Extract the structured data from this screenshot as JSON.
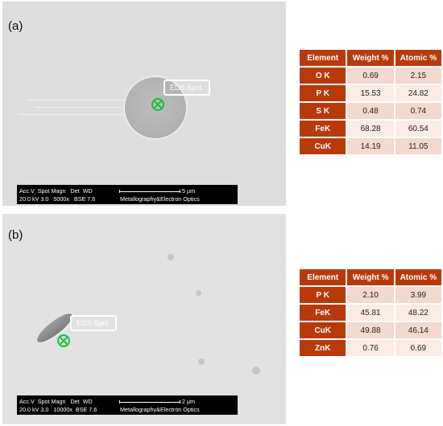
{
  "panel_a": {
    "label": "(a)",
    "spot_label": "EDS Spot",
    "databar": {
      "row1": "Acc.V  Spot Magn   Det  WD",
      "row2": "20.0 kV 3.0   5000x   BSE 7.6",
      "scale": "5 μm",
      "lab": "Metallography&Electron Optics"
    },
    "table": {
      "headers": [
        "Element",
        "Weight %",
        "Atomic %"
      ],
      "rows": [
        {
          "element": "O K",
          "weight": "0.69",
          "atomic": "2.15"
        },
        {
          "element": "P K",
          "weight": "15.53",
          "atomic": "24.82"
        },
        {
          "element": "S K",
          "weight": "0.48",
          "atomic": "0.74"
        },
        {
          "element": "FeK",
          "weight": "68.28",
          "atomic": "60.54"
        },
        {
          "element": "CuK",
          "weight": "14.19",
          "atomic": "11.05"
        }
      ]
    }
  },
  "panel_b": {
    "label": "(b)",
    "spot_label": "EDS Spot",
    "databar": {
      "row1": "Acc.V  Spot Magn   Det  WD",
      "row2": "20.0 kV 3.0   10000x  BSE 7.6",
      "scale": "2 μm",
      "lab": "Metallography&Electron Optics"
    },
    "table": {
      "headers": [
        "Element",
        "Weight %",
        "Atomic %"
      ],
      "rows": [
        {
          "element": "P K",
          "weight": "2.10",
          "atomic": "3.99"
        },
        {
          "element": "FeK",
          "weight": "45.81",
          "atomic": "48.22"
        },
        {
          "element": "CuK",
          "weight": "49.88",
          "atomic": "46.14"
        },
        {
          "element": "ZnK",
          "weight": "0.76",
          "atomic": "0.69"
        }
      ]
    }
  },
  "colors": {
    "header": "#b83a0a",
    "row_light": "#fbece6",
    "row_dark": "#f4d9cf",
    "crosshair": "#16c23b"
  },
  "icons": [
    "eds-crosshair-icon"
  ]
}
